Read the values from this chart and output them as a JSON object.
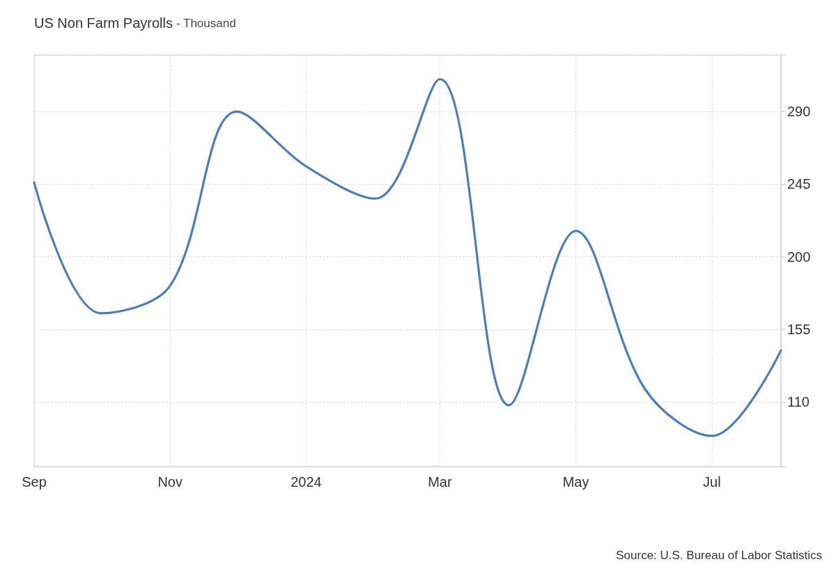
{
  "chart_data": {
    "type": "line",
    "title": "US Non Farm Payrolls",
    "subtitle": "- Thousand",
    "x": [
      "2023-09",
      "2023-10",
      "2023-11",
      "2023-12",
      "2024-01",
      "2024-02",
      "2024-03",
      "2024-04",
      "2024-05",
      "2024-06",
      "2024-07",
      "2024-08"
    ],
    "values": [
      246,
      165,
      182,
      290,
      256,
      236,
      310,
      108,
      216,
      118,
      89,
      142
    ],
    "color": "#4a7ebb",
    "xlim": [
      "2023-09",
      "2024-08"
    ],
    "xticks": [
      {
        "value": "2023-09",
        "label": "Sep"
      },
      {
        "value": "2023-11",
        "label": "Nov"
      },
      {
        "value": "2024-01",
        "label": "2024"
      },
      {
        "value": "2024-03",
        "label": "Mar"
      },
      {
        "value": "2024-05",
        "label": "May"
      },
      {
        "value": "2024-07",
        "label": "Jul"
      }
    ],
    "ylim": [
      70,
      325
    ],
    "yticks": [
      {
        "value": 70,
        "label": null
      },
      110,
      155,
      200,
      245,
      290,
      {
        "value": 325,
        "label": null
      }
    ],
    "grid": true,
    "annotations": [
      "Source: U.S. Bureau of Labor Statistics"
    ]
  }
}
